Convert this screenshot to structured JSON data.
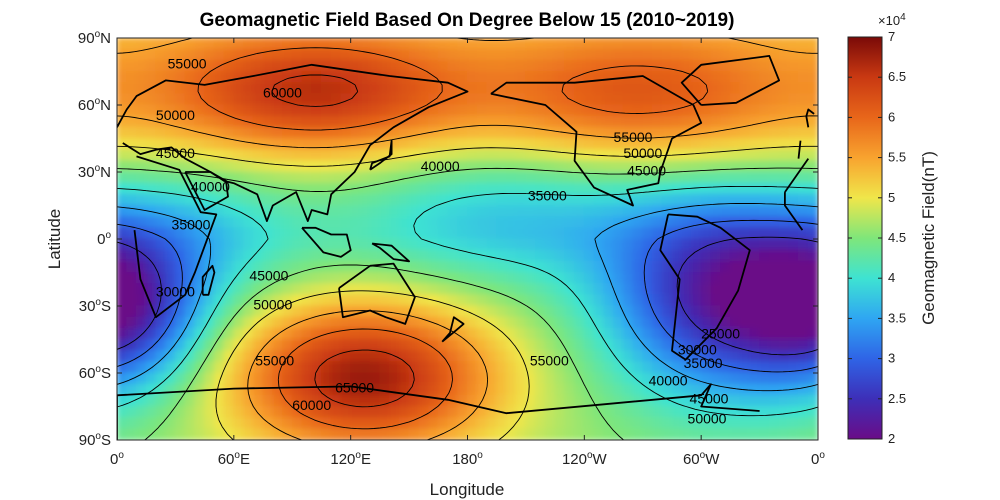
{
  "chart_data": {
    "type": "heatmap",
    "title": "Geomagnetic Field Based On Degree Below 15 (2010~2019)",
    "xlabel": "Longitude",
    "ylabel": "Latitude",
    "x_ticks": [
      "0",
      "60",
      "120",
      "180",
      "120",
      "60",
      "0"
    ],
    "x_tick_suffix": [
      "o",
      "oE",
      "oE",
      "o",
      "oW",
      "oW",
      "o"
    ],
    "y_ticks": [
      "90",
      "60",
      "30",
      "0",
      "30",
      "60",
      "90"
    ],
    "y_tick_suffix": [
      "oN",
      "oN",
      "oN",
      "o",
      "oS",
      "oS",
      "oS"
    ],
    "xlim": [
      0,
      360
    ],
    "ylim": [
      -90,
      90
    ],
    "colormap": "rainbow (purple-blue-cyan-green-yellow-orange-dark red)",
    "colorbar": {
      "label": "Geomagnetic Field(nT)",
      "exponent_label": "×10",
      "exponent": "4",
      "range": [
        20000,
        70000
      ],
      "ticks": [
        "2",
        "2.5",
        "3",
        "3.5",
        "4",
        "4.5",
        "5",
        "5.5",
        "6",
        "6.5",
        "7"
      ]
    },
    "contour_levels": [
      25000,
      30000,
      35000,
      40000,
      45000,
      50000,
      55000,
      60000,
      65000
    ],
    "field_features": [
      {
        "kind": "maximum",
        "lon": 127,
        "lat": -62,
        "value": 67000
      },
      {
        "kind": "maximum",
        "lon": 100,
        "lat": 65,
        "value": 61000
      },
      {
        "kind": "maximum",
        "lon": 270,
        "lat": 63,
        "value": 57000
      },
      {
        "kind": "minimum",
        "lon": 312,
        "lat": -25,
        "value": 22500
      },
      {
        "kind": "minimum",
        "lon": 5,
        "lat": -32,
        "value": 28500
      }
    ],
    "contour_labels": [
      {
        "text": "55000",
        "lon": 36,
        "lat": 78
      },
      {
        "text": "60000",
        "lon": 85,
        "lat": 65
      },
      {
        "text": "50000",
        "lon": 30,
        "lat": 55
      },
      {
        "text": "45000",
        "lon": 30,
        "lat": 38
      },
      {
        "text": "40000",
        "lon": 48,
        "lat": 23
      },
      {
        "text": "35000",
        "lon": 38,
        "lat": 6
      },
      {
        "text": "30000",
        "lon": 30,
        "lat": -24
      },
      {
        "text": "45000",
        "lon": 78,
        "lat": -17
      },
      {
        "text": "50000",
        "lon": 80,
        "lat": -30
      },
      {
        "text": "55000",
        "lon": 81,
        "lat": -55
      },
      {
        "text": "60000",
        "lon": 100,
        "lat": -75
      },
      {
        "text": "65000",
        "lon": 122,
        "lat": -67
      },
      {
        "text": "55000",
        "lon": 222,
        "lat": -55
      },
      {
        "text": "40000",
        "lon": 166,
        "lat": 32
      },
      {
        "text": "35000",
        "lon": 221,
        "lat": 19
      },
      {
        "text": "55000",
        "lon": 265,
        "lat": 45
      },
      {
        "text": "50000",
        "lon": 270,
        "lat": 38
      },
      {
        "text": "45000",
        "lon": 272,
        "lat": 30
      },
      {
        "text": "25000",
        "lon": 310,
        "lat": -43
      },
      {
        "text": "30000",
        "lon": 298,
        "lat": -50
      },
      {
        "text": "35000",
        "lon": 301,
        "lat": -56
      },
      {
        "text": "40000",
        "lon": 283,
        "lat": -64
      },
      {
        "text": "45000",
        "lon": 304,
        "lat": -72
      },
      {
        "text": "50000",
        "lon": 303,
        "lat": -81
      }
    ],
    "grid": false,
    "overlay": "coastlines"
  },
  "colors": {
    "colormap_stops": [
      "#6a0c87",
      "#3d2fb8",
      "#2f64e6",
      "#2fa6f2",
      "#3ee3d2",
      "#7fe67a",
      "#f0e64a",
      "#f8a32f",
      "#e8661a",
      "#c93912",
      "#7a0a08"
    ],
    "contour_line": "#000000",
    "coastline": "#000000"
  }
}
